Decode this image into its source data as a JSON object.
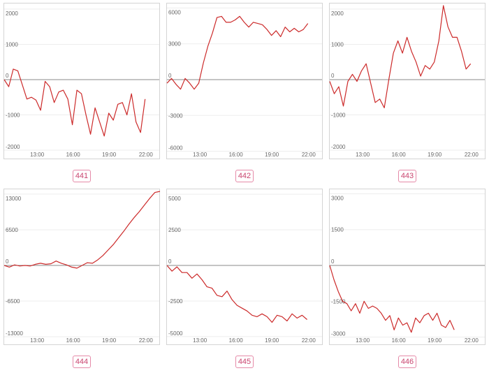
{
  "colors": {
    "line": "#cc2a2a",
    "badge": "#c9456f"
  },
  "chart_data": [
    {
      "type": "line",
      "label": "441",
      "ylim": [
        -2100,
        2100
      ],
      "yticks": [
        {
          "v": 2000,
          "t": "2000"
        },
        {
          "v": 1000,
          "t": "1000"
        },
        {
          "v": 0,
          "t": "0"
        },
        {
          "v": -1000,
          "t": "-1000"
        },
        {
          "v": -2000,
          "t": "-2000"
        }
      ],
      "xticks": [
        "13:00",
        "16:00",
        "19:00",
        "22:00"
      ],
      "values": [
        0,
        -200,
        300,
        250,
        -150,
        -550,
        -500,
        -580,
        -870,
        -50,
        -200,
        -650,
        -350,
        -300,
        -550,
        -1280,
        -300,
        -400,
        -1000,
        -1550,
        -800,
        -1200,
        -1600,
        -950,
        -1150,
        -700,
        -650,
        -1000,
        -400,
        -1200,
        -1500,
        -550
      ]
    },
    {
      "type": "line",
      "label": "442",
      "ylim": [
        -6200,
        6200
      ],
      "yticks": [
        {
          "v": 6000,
          "t": "6000"
        },
        {
          "v": 3000,
          "t": "3000"
        },
        {
          "v": 0,
          "t": "0"
        },
        {
          "v": -3000,
          "t": "-3000"
        },
        {
          "v": -6000,
          "t": "-6000"
        }
      ],
      "xticks": [
        "13:00",
        "16:00",
        "19:00",
        "22:00"
      ],
      "values": [
        -300,
        100,
        -400,
        -800,
        100,
        -300,
        -800,
        -300,
        1400,
        2800,
        3900,
        5200,
        5300,
        4800,
        4800,
        5000,
        5300,
        4800,
        4400,
        4800,
        4700,
        4600,
        4200,
        3700,
        4100,
        3600,
        4400,
        4000,
        4300,
        4000,
        4200,
        4700
      ]
    },
    {
      "type": "line",
      "label": "443",
      "ylim": [
        -2100,
        2100
      ],
      "yticks": [
        {
          "v": 2000,
          "t": "2000"
        },
        {
          "v": 1000,
          "t": "1000"
        },
        {
          "v": 0,
          "t": "0"
        },
        {
          "v": -1000,
          "t": "-1000"
        },
        {
          "v": -2000,
          "t": "-2000"
        }
      ],
      "xticks": [
        "13:00",
        "16:00",
        "19:00",
        "22:00"
      ],
      "values": [
        -50,
        -400,
        -200,
        -750,
        -50,
        150,
        -50,
        250,
        450,
        -100,
        -650,
        -550,
        -800,
        0,
        750,
        1100,
        750,
        1200,
        800,
        500,
        100,
        400,
        300,
        500,
        1100,
        2100,
        1500,
        1200,
        1200,
        800,
        300,
        450
      ]
    },
    {
      "type": "line",
      "label": "444",
      "ylim": [
        -13500,
        13500
      ],
      "yticks": [
        {
          "v": 13000,
          "t": "13000"
        },
        {
          "v": 6500,
          "t": "6500"
        },
        {
          "v": 0,
          "t": "0"
        },
        {
          "v": -6500,
          "t": "-6500"
        },
        {
          "v": -13000,
          "t": "-13000"
        }
      ],
      "xticks": [
        "13:00",
        "16:00",
        "19:00",
        "22:00"
      ],
      "values": [
        0,
        -300,
        100,
        -100,
        0,
        -100,
        200,
        400,
        200,
        300,
        800,
        400,
        100,
        -300,
        -500,
        0,
        500,
        400,
        1000,
        1800,
        2800,
        3800,
        5000,
        6200,
        7500,
        8700,
        9800,
        11000,
        12200,
        13300,
        13500
      ]
    },
    {
      "type": "line",
      "label": "445",
      "ylim": [
        -5200,
        5200
      ],
      "yticks": [
        {
          "v": 5000,
          "t": "5000"
        },
        {
          "v": 2500,
          "t": "2500"
        },
        {
          "v": 0,
          "t": "0"
        },
        {
          "v": -2500,
          "t": "-2500"
        },
        {
          "v": -5000,
          "t": "-5000"
        }
      ],
      "xticks": [
        "13:00",
        "16:00",
        "19:00",
        "22:00"
      ],
      "values": [
        0,
        -400,
        -100,
        -500,
        -500,
        -900,
        -600,
        -1000,
        -1500,
        -1600,
        -2100,
        -2200,
        -1800,
        -2400,
        -2800,
        -3000,
        -3200,
        -3500,
        -3600,
        -3400,
        -3600,
        -4000,
        -3500,
        -3600,
        -3900,
        -3400,
        -3700,
        -3500,
        -3800
      ]
    },
    {
      "type": "line",
      "label": "446",
      "ylim": [
        -3100,
        3100
      ],
      "yticks": [
        {
          "v": 3000,
          "t": "3000"
        },
        {
          "v": 1500,
          "t": "1500"
        },
        {
          "v": 0,
          "t": "0"
        },
        {
          "v": -1500,
          "t": "-1500"
        },
        {
          "v": -3000,
          "t": "-3000"
        }
      ],
      "xticks": [
        "13:00",
        "16:00",
        "19:00",
        "22:00"
      ],
      "values": [
        0,
        -600,
        -1100,
        -1500,
        -1600,
        -1900,
        -1600,
        -2000,
        -1500,
        -1800,
        -1700,
        -1800,
        -2000,
        -2300,
        -2100,
        -2700,
        -2200,
        -2500,
        -2400,
        -2800,
        -2200,
        -2400,
        -2100,
        -2000,
        -2300,
        -2000,
        -2500,
        -2600,
        -2300,
        -2700
      ]
    }
  ]
}
